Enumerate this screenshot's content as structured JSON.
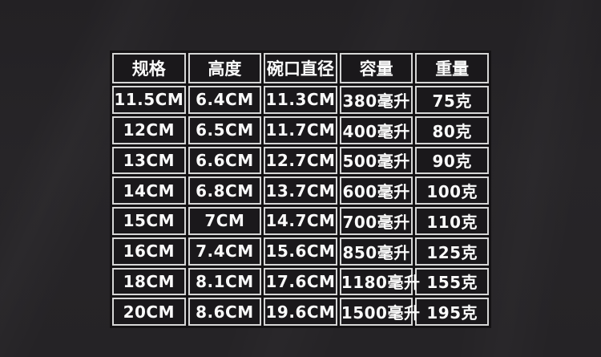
{
  "chart_data": {
    "type": "table",
    "columns": [
      "规格",
      "高度",
      "碗口直径",
      "容量",
      "重量"
    ],
    "rows": [
      [
        "11.5CM",
        "6.4CM",
        "11.3CM",
        "380毫升",
        "75克"
      ],
      [
        "12CM",
        "6.5CM",
        "11.7CM",
        "400毫升",
        "80克"
      ],
      [
        "13CM",
        "6.6CM",
        "12.7CM",
        "500毫升",
        "90克"
      ],
      [
        "14CM",
        "6.8CM",
        "13.7CM",
        "600毫升",
        "100克"
      ],
      [
        "15CM",
        "7CM",
        "14.7CM",
        "700毫升",
        "110克"
      ],
      [
        "16CM",
        "7.4CM",
        "15.6CM",
        "850毫升",
        "125克"
      ],
      [
        "18CM",
        "8.1CM",
        "17.6CM",
        "1180毫升",
        "155克"
      ],
      [
        "20CM",
        "8.6CM",
        "19.6CM",
        "1500毫升",
        "195克"
      ]
    ],
    "layout_hints": {
      "legend": "none",
      "grid": "cell-borders",
      "header_row": true
    }
  },
  "colors": {
    "page_background": "#262427",
    "cell_background": "#1a181b",
    "cell_border": "#d6d6d6",
    "text": "#fafafa"
  }
}
